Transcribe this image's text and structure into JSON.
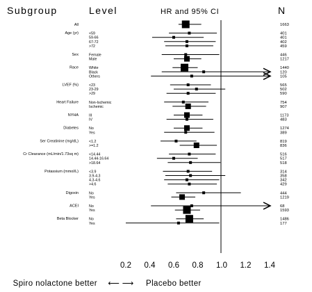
{
  "header": {
    "subgroup": "Subgroup",
    "level": "Level",
    "estimate": "HR and 95% CI",
    "n": "N"
  },
  "footer": {
    "left": "Spiro nolactone better",
    "arrows": "⟵ ⟶",
    "right": "Placebo better"
  },
  "chart_data": {
    "type": "forest",
    "x_ticks": [
      "0.2",
      "0.4",
      "0.6",
      "0.8",
      "1.0",
      "1.2",
      "1.4"
    ],
    "xlim": [
      0.2,
      1.4
    ],
    "reference_line": 1.0,
    "groups": [
      {
        "name": "All",
        "rows": [
          {
            "level": "",
            "hr": 0.7,
            "lo": 0.64,
            "hi": 0.83,
            "n": "1663",
            "box": "large"
          }
        ]
      },
      {
        "name": "Age (yr)",
        "rows": [
          {
            "level": "<59",
            "hr": 0.73,
            "lo": 0.56,
            "hi": 0.96,
            "n": "401",
            "box": "small"
          },
          {
            "level": "59-66",
            "hr": 0.6,
            "lo": 0.42,
            "hi": 0.85,
            "n": "401",
            "box": "small"
          },
          {
            "level": "67-72",
            "hr": 0.71,
            "lo": 0.52,
            "hi": 0.95,
            "n": "402",
            "box": "small"
          },
          {
            "level": ">72",
            "hr": 0.71,
            "lo": 0.53,
            "hi": 0.93,
            "n": "459",
            "box": "small"
          }
        ]
      },
      {
        "name": "Sex",
        "rows": [
          {
            "level": "Female",
            "hr": 0.7,
            "lo": 0.5,
            "hi": 0.98,
            "n": "446",
            "box": "small"
          },
          {
            "level": "Male",
            "hr": 0.71,
            "lo": 0.6,
            "hi": 0.83,
            "n": "1217",
            "box": "medium"
          }
        ]
      },
      {
        "name": "Race",
        "rows": [
          {
            "level": "White",
            "hr": 0.69,
            "lo": 0.59,
            "hi": 0.8,
            "n": "1440",
            "box": "large"
          },
          {
            "level": "Black",
            "hr": 0.85,
            "lo": 0.5,
            "hi": 1.45,
            "n": "120",
            "box": "small"
          },
          {
            "level": "Others",
            "hr": 0.75,
            "lo": 0.41,
            "hi": 1.45,
            "n": "105",
            "box": "small"
          }
        ]
      },
      {
        "name": "LVEF (%)",
        "rows": [
          {
            "level": "<23",
            "hr": 0.72,
            "lo": 0.57,
            "hi": 0.91,
            "n": "565",
            "box": "small"
          },
          {
            "level": "23-29",
            "hr": 0.79,
            "lo": 0.6,
            "hi": 1.03,
            "n": "502",
            "box": "small"
          },
          {
            "level": ">29",
            "hr": 0.72,
            "lo": 0.54,
            "hi": 0.95,
            "n": "590",
            "box": "small"
          }
        ]
      },
      {
        "name": "Heart Failure",
        "rows": [
          {
            "level": "Non-Ischemic",
            "hr": 0.68,
            "lo": 0.52,
            "hi": 0.89,
            "n": "754",
            "box": "small"
          },
          {
            "level": "Ischemic",
            "hr": 0.72,
            "lo": 0.59,
            "hi": 0.87,
            "n": "907",
            "box": "medium"
          }
        ]
      },
      {
        "name": "NYHA",
        "rows": [
          {
            "level": "III",
            "hr": 0.71,
            "lo": 0.6,
            "hi": 0.84,
            "n": "1173",
            "box": "medium"
          },
          {
            "level": "IV",
            "hr": 0.71,
            "lo": 0.54,
            "hi": 0.93,
            "n": "483",
            "box": "small"
          }
        ]
      },
      {
        "name": "Diabetes",
        "rows": [
          {
            "level": "No",
            "hr": 0.71,
            "lo": 0.6,
            "hi": 0.84,
            "n": "1274",
            "box": "medium"
          },
          {
            "level": "Yes",
            "hr": 0.7,
            "lo": 0.52,
            "hi": 0.94,
            "n": "389",
            "box": "small"
          }
        ]
      },
      {
        "name": "Ser Creatinine (mg/dL)",
        "rows": [
          {
            "level": "<1.2",
            "hr": 0.62,
            "lo": 0.49,
            "hi": 0.79,
            "n": "819",
            "box": "small"
          },
          {
            "level": ">=1.2",
            "hr": 0.79,
            "lo": 0.65,
            "hi": 0.96,
            "n": "836",
            "box": "medium"
          }
        ]
      },
      {
        "name": "Cr Clearance (mL/min/1.73sq m)",
        "rows": [
          {
            "level": "<14.44",
            "hr": 0.73,
            "lo": 0.56,
            "hi": 0.95,
            "n": "516",
            "box": "small"
          },
          {
            "level": "14.44-16.64",
            "hr": 0.6,
            "lo": 0.46,
            "hi": 0.8,
            "n": "517",
            "box": "small"
          },
          {
            "level": ">18.64",
            "hr": 0.74,
            "lo": 0.55,
            "hi": 0.99,
            "n": "518",
            "box": "small"
          }
        ]
      },
      {
        "name": "Potassium (mmol/L)",
        "rows": [
          {
            "level": "<3.9",
            "hr": 0.72,
            "lo": 0.51,
            "hi": 0.92,
            "n": "314",
            "box": "small"
          },
          {
            "level": "3.9-4.3",
            "hr": 0.74,
            "lo": 0.53,
            "hi": 1.03,
            "n": "358",
            "box": "small"
          },
          {
            "level": "4.3-4.6",
            "hr": 0.71,
            "lo": 0.52,
            "hi": 0.98,
            "n": "342",
            "box": "small"
          },
          {
            "level": ">4.6",
            "hr": 0.73,
            "lo": 0.55,
            "hi": 0.96,
            "n": "429",
            "box": "small"
          }
        ]
      },
      {
        "name": "Digoxin",
        "rows": [
          {
            "level": "No",
            "hr": 0.85,
            "lo": 0.62,
            "hi": 1.16,
            "n": "444",
            "box": "small"
          },
          {
            "level": "Yes",
            "hr": 0.67,
            "lo": 0.58,
            "hi": 0.78,
            "n": "1219",
            "box": "medium"
          }
        ]
      },
      {
        "name": "ACEI",
        "rows": [
          {
            "level": "No",
            "hr": 0.75,
            "lo": 0.41,
            "hi": 1.45,
            "n": "68",
            "box": "small"
          },
          {
            "level": "Yes",
            "hr": 0.71,
            "lo": 0.61,
            "hi": 0.82,
            "n": "1593",
            "box": "large"
          }
        ]
      },
      {
        "name": "Beta Blocker",
        "rows": [
          {
            "level": "No",
            "hr": 0.73,
            "lo": 0.62,
            "hi": 0.85,
            "n": "1486",
            "box": "large"
          },
          {
            "level": "Yes",
            "hr": 0.64,
            "lo": 0.2,
            "hi": 0.98,
            "n": "177",
            "box": "small"
          }
        ]
      }
    ]
  }
}
